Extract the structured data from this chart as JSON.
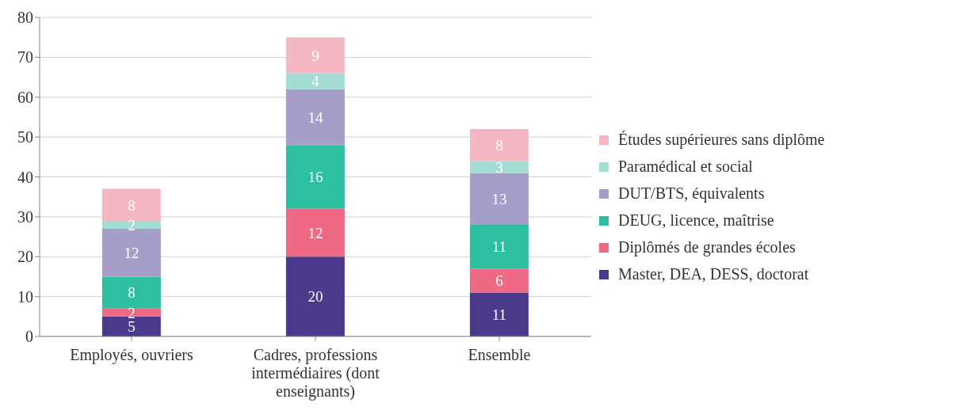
{
  "chart_data": {
    "type": "bar",
    "stacked": true,
    "categories": [
      "Employés, ouvriers",
      "Cadres, professions intermédiaires (dont enseignants)",
      "Ensemble"
    ],
    "series": [
      {
        "name": "Master, DEA, DESS, doctorat",
        "color": "#4b3a8c",
        "values": [
          5,
          20,
          11
        ]
      },
      {
        "name": "Diplômés de grandes écoles",
        "color": "#ee6a84",
        "values": [
          2,
          12,
          6
        ]
      },
      {
        "name": "DEUG, licence,  maîtrise",
        "color": "#2dbfa0",
        "values": [
          8,
          16,
          11
        ]
      },
      {
        "name": "DUT/BTS, équivalents",
        "color": "#a59ec9",
        "values": [
          12,
          14,
          13
        ]
      },
      {
        "name": "Paramédical et social",
        "color": "#a3dcd2",
        "values": [
          2,
          4,
          3
        ]
      },
      {
        "name": "Études supérieures sans diplôme",
        "color": "#f5b7c3",
        "values": [
          8,
          9,
          8
        ]
      }
    ],
    "ylim": [
      0,
      80
    ],
    "yticks": [
      0,
      10,
      20,
      30,
      40,
      50,
      60,
      70,
      80
    ],
    "grid": "y",
    "legend": "right",
    "data_labels": true
  }
}
